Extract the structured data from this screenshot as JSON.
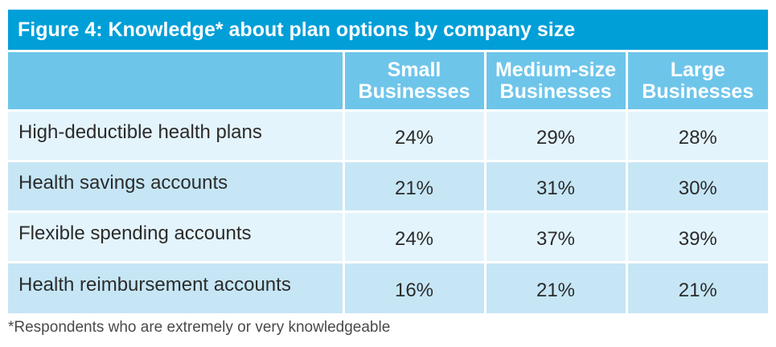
{
  "chart_data": {
    "type": "table",
    "title": "Figure 4: Knowledge* about plan options by company size",
    "columns": [
      {
        "line1": "Small",
        "line2": "Businesses"
      },
      {
        "line1": "Medium-size",
        "line2": "Businesses"
      },
      {
        "line1": "Large",
        "line2": "Businesses"
      }
    ],
    "rows": [
      {
        "label": "High-deductible health plans",
        "values": [
          "24%",
          "29%",
          "28%"
        ]
      },
      {
        "label": "Health savings accounts",
        "values": [
          "21%",
          "31%",
          "30%"
        ]
      },
      {
        "label": "Flexible spending accounts",
        "values": [
          "24%",
          "37%",
          "39%"
        ]
      },
      {
        "label": "Health reimbursement accounts",
        "values": [
          "16%",
          "21%",
          "21%"
        ]
      }
    ],
    "footnote": "*Respondents who are extremely or very knowledgeable"
  },
  "colors": {
    "title_bar": "#009fd8",
    "header_row": "#6ec5ea",
    "row_light": "#e4f4fc",
    "row_dark": "#c6e6f6"
  }
}
